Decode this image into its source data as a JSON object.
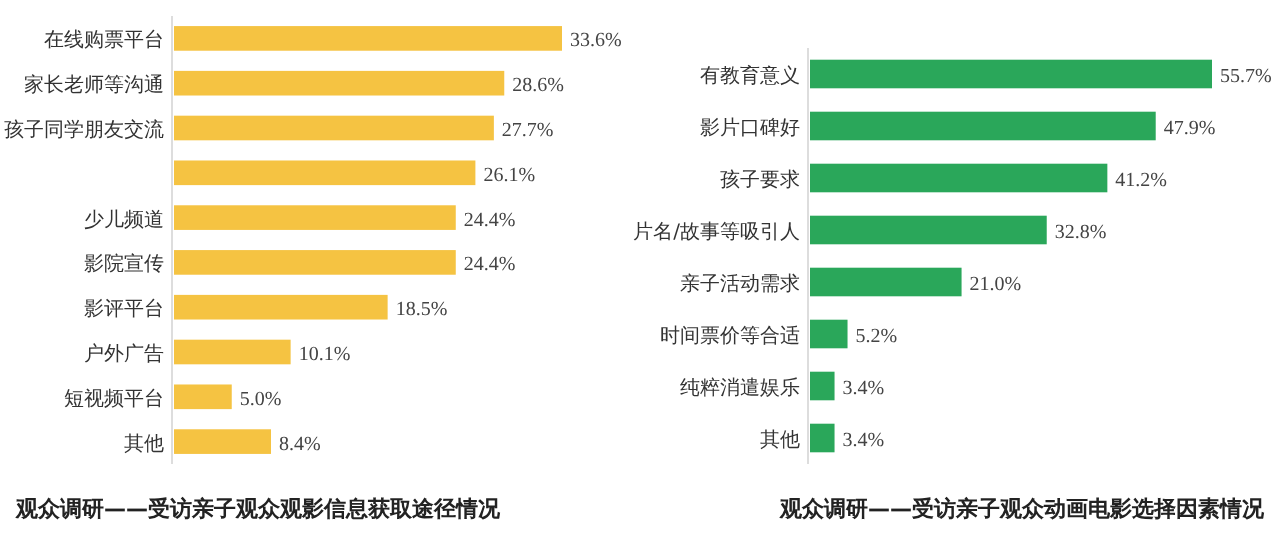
{
  "chart_data": [
    {
      "type": "bar",
      "orientation": "horizontal",
      "title": "观众调研——受访亲子观众观影信息获取途径情况",
      "categories": [
        "在线购票平台",
        "家长老师等沟通",
        "孩子同学朋友交流",
        null,
        "少儿频道",
        "影院宣传",
        "影评平台",
        "户外广告",
        "短视频平台",
        "其他"
      ],
      "series": [
        {
          "color": "#f5c342",
          "values": [
            33.6,
            28.6,
            27.7,
            26.1,
            24.4,
            24.4,
            18.5,
            10.1,
            5.0,
            8.4
          ],
          "value_labels": [
            "33.6%",
            "28.6%",
            "27.7%",
            "26.1%",
            "24.4%",
            "24.4%",
            "18.5%",
            "10.1%",
            "5.0%",
            "8.4%"
          ]
        }
      ]
    },
    {
      "type": "bar",
      "orientation": "horizontal",
      "title": "观众调研——受访亲子观众动画电影选择因素情况",
      "categories": [
        "有教育意义",
        "影片口碑好",
        "孩子要求",
        "片名/故事等吸引人",
        "亲子活动需求",
        "时间票价等合适",
        "纯粹消遣娱乐",
        "其他"
      ],
      "series": [
        {
          "color": "#2aa75a",
          "values": [
            55.7,
            47.9,
            41.2,
            32.8,
            21.0,
            5.2,
            3.4,
            3.4
          ],
          "value_labels": [
            "55.7%",
            "47.9%",
            "41.2%",
            "32.8%",
            "21.0%",
            "5.2%",
            "3.4%",
            "3.4%"
          ]
        }
      ]
    }
  ]
}
